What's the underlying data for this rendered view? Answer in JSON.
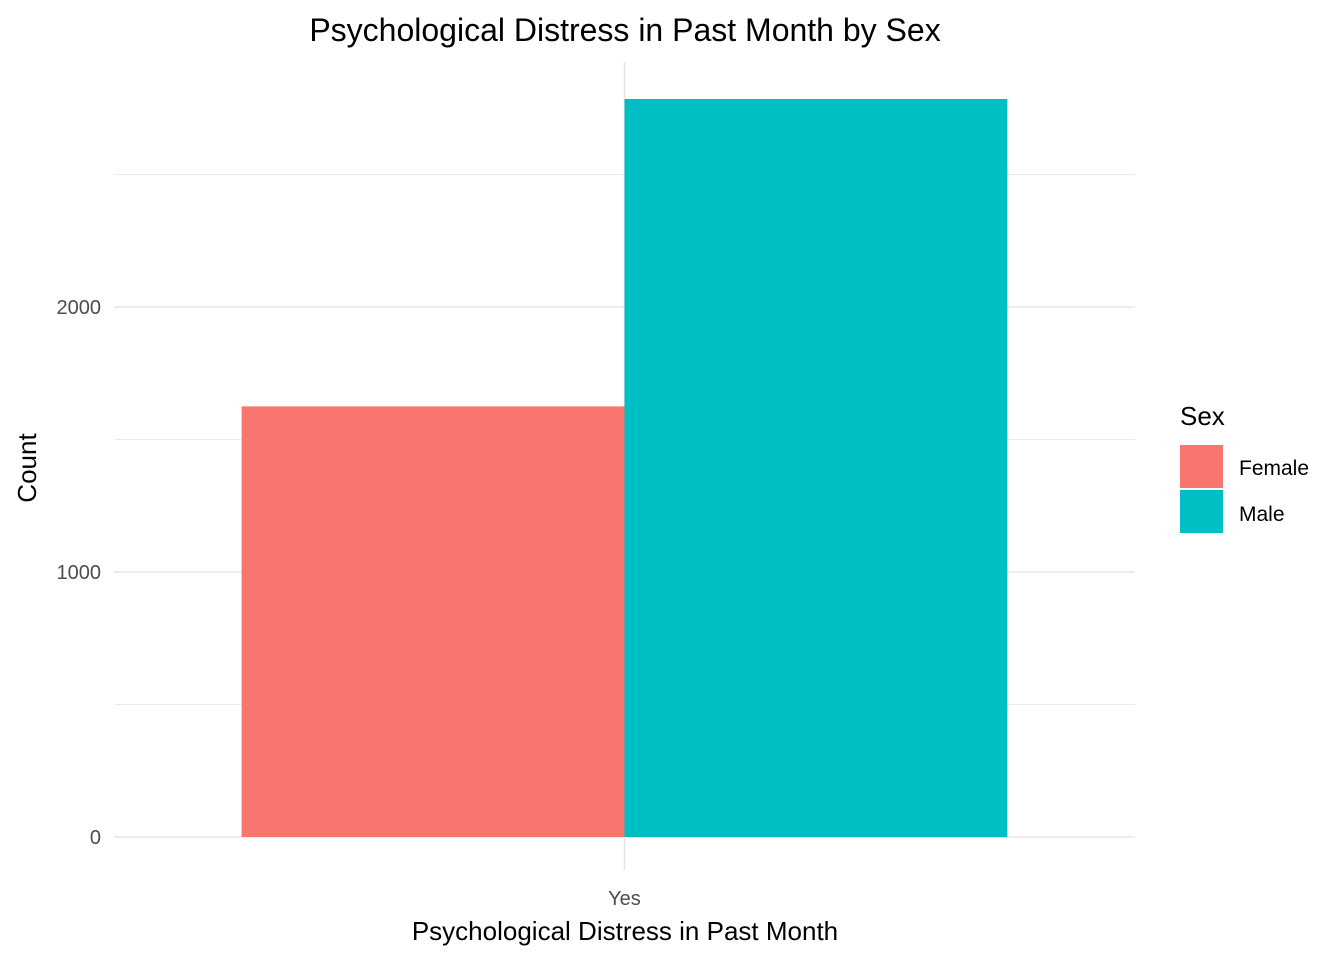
{
  "chart_data": {
    "type": "bar",
    "title": "Psychological Distress in Past Month by Sex",
    "xlabel": "Psychological Distress in Past Month",
    "ylabel": "Count",
    "categories": [
      "Yes"
    ],
    "series": [
      {
        "name": "Female",
        "values": [
          1625
        ],
        "color": "#F8766D"
      },
      {
        "name": "Male",
        "values": [
          2785
        ],
        "color": "#00BFC4"
      }
    ],
    "ylim": [
      0,
      2950
    ],
    "yticks": [
      0,
      1000,
      2000
    ],
    "grid": true,
    "legend": {
      "title": "Sex",
      "position": "right"
    }
  }
}
